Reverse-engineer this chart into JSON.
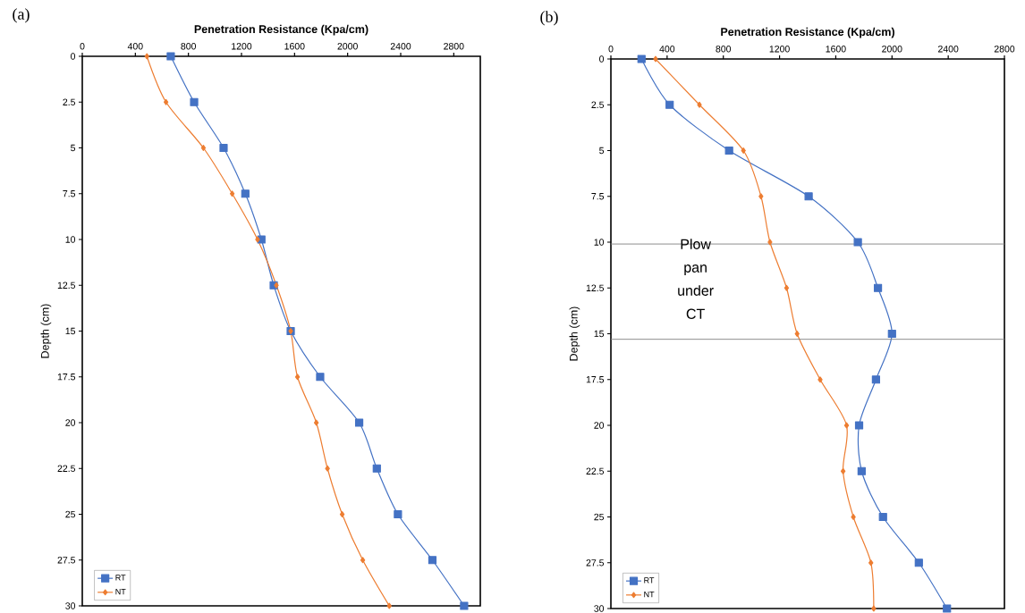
{
  "chart_data": [
    {
      "type": "line",
      "title": "(a)",
      "xlabel": "Penetration Resistance (Kpa/cm)",
      "ylabel": "Depth (cm)",
      "xlim": [
        0,
        3000
      ],
      "xticks": [
        0,
        400,
        800,
        1200,
        1600,
        2000,
        2400,
        2800
      ],
      "ylim": [
        30,
        0
      ],
      "yticks": [
        0,
        2.5,
        5,
        7.5,
        10,
        12.5,
        15,
        17.5,
        20,
        22.5,
        25,
        27.5,
        30
      ],
      "legend": "bottom left",
      "grid": false,
      "series": [
        {
          "name": "RT",
          "color": "#4472c4",
          "marker": "square",
          "x": [
            667,
            843,
            1065,
            1229,
            1350,
            1443,
            1571,
            1793,
            2087,
            2220,
            2379,
            2639,
            2878
          ],
          "values": [
            0,
            2.5,
            5,
            7.5,
            10,
            12.5,
            15,
            17.5,
            20,
            22.5,
            25,
            27.5,
            30
          ]
        },
        {
          "name": "NT",
          "color": "#ed7d31",
          "marker": "diamond",
          "x": [
            487,
            631,
            913,
            1130,
            1321,
            1463,
            1571,
            1622,
            1764,
            1848,
            1959,
            2114,
            2314
          ],
          "values": [
            0,
            2.5,
            5,
            7.5,
            10,
            12.5,
            15,
            17.5,
            20,
            22.5,
            25,
            27.5,
            30
          ]
        }
      ]
    },
    {
      "type": "line",
      "title": "(b)",
      "xlabel": "Penetration Resistance (Kpa/cm)",
      "ylabel": "Depth (cm)",
      "xlim": [
        0,
        2800
      ],
      "xticks": [
        0,
        400,
        800,
        1200,
        1600,
        2000,
        2400,
        2800
      ],
      "ylim": [
        30,
        0
      ],
      "yticks": [
        0,
        2.5,
        5,
        7.5,
        10,
        12.5,
        15,
        17.5,
        20,
        22.5,
        25,
        27.5,
        30
      ],
      "legend": "bottom left",
      "grid": false,
      "ref_lines": [
        {
          "axis": "y",
          "value": 10.1,
          "color": "#808080"
        },
        {
          "axis": "y",
          "value": 15.3,
          "color": "#808080"
        }
      ],
      "annotations": [
        "Plow pan under CT"
      ],
      "series": [
        {
          "name": "RT",
          "color": "#4472c4",
          "marker": "square",
          "x": [
            218,
            418,
            841,
            1407,
            1757,
            1900,
            2000,
            1886,
            1766,
            1784,
            1936,
            2191,
            2391
          ],
          "values": [
            0,
            2.5,
            5,
            7.5,
            10,
            12.5,
            15,
            17.5,
            20,
            22.5,
            25,
            27.5,
            30
          ]
        },
        {
          "name": "NT",
          "color": "#ed7d31",
          "marker": "diamond",
          "x": [
            318,
            630,
            943,
            1068,
            1132,
            1250,
            1325,
            1489,
            1677,
            1652,
            1725,
            1850,
            1870
          ],
          "values": [
            0,
            2.5,
            5,
            7.5,
            10,
            12.5,
            15,
            17.5,
            20,
            22.5,
            25,
            27.5,
            30
          ]
        }
      ]
    }
  ]
}
